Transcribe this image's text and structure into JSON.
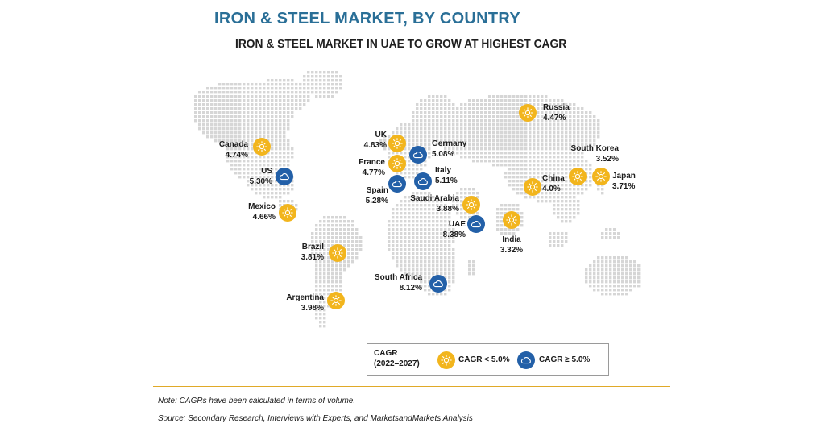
{
  "title": "IRON & STEEL MARKET, BY COUNTRY",
  "subtitle": "IRON & STEEL MARKET IN UAE TO GROW AT HIGHEST CAGR",
  "colors": {
    "low": "#f2b51d",
    "high": "#2360a8",
    "title": "#2a6f97",
    "map_dots": "#d6d6d6",
    "divider": "#e0a928"
  },
  "icons": {
    "low": "sun-icon",
    "high": "cloud-icon"
  },
  "countries": [
    {
      "name": "Canada",
      "cagr": "4.74%",
      "category": "low"
    },
    {
      "name": "US",
      "cagr": "5.30%",
      "category": "high"
    },
    {
      "name": "Mexico",
      "cagr": "4.66%",
      "category": "low"
    },
    {
      "name": "Brazil",
      "cagr": "3.81%",
      "category": "low"
    },
    {
      "name": "Argentina",
      "cagr": "3.98%",
      "category": "low"
    },
    {
      "name": "UK",
      "cagr": "4.83%",
      "category": "low"
    },
    {
      "name": "Germany",
      "cagr": "5.08%",
      "category": "high"
    },
    {
      "name": "France",
      "cagr": "4.77%",
      "category": "low"
    },
    {
      "name": "Italy",
      "cagr": "5.11%",
      "category": "high"
    },
    {
      "name": "Spain",
      "cagr": "5.28%",
      "category": "high"
    },
    {
      "name": "Saudi Arabia",
      "cagr": "3.88%",
      "category": "low"
    },
    {
      "name": "UAE",
      "cagr": "8.38%",
      "category": "high"
    },
    {
      "name": "South Africa",
      "cagr": "8.12%",
      "category": "high"
    },
    {
      "name": "Russia",
      "cagr": "4.47%",
      "category": "low"
    },
    {
      "name": "China",
      "cagr": "4.0%",
      "category": "low"
    },
    {
      "name": "South Korea",
      "cagr": "3.52%",
      "category": "low"
    },
    {
      "name": "Japan",
      "cagr": "3.71%",
      "category": "low"
    },
    {
      "name": "India",
      "cagr": "3.32%",
      "category": "low"
    }
  ],
  "legend": {
    "title_line1": "CAGR",
    "title_line2": "(2022–2027)",
    "low_label": "CAGR < 5.0%",
    "high_label": "CAGR ≥ 5.0%"
  },
  "note": "Note: CAGRs have been calculated in terms of volume.",
  "source": "Source: Secondary Research, Interviews with Experts, and MarketsandMarkets Analysis"
}
